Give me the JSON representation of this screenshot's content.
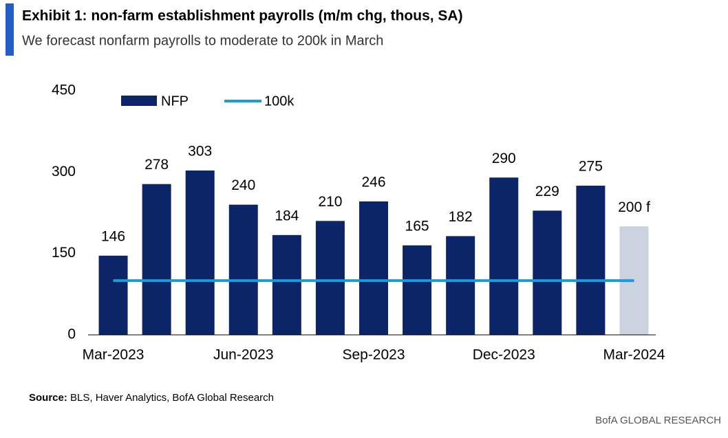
{
  "chart_data": {
    "type": "bar",
    "title": "Exhibit 1: non-farm establishment payrolls (m/m chg, thous, SA)",
    "subtitle": "We forecast nonfarm payrolls to moderate to 200k in March",
    "source_label": "Source:",
    "source": "BLS, Haver Analytics, BofA Global Research",
    "footer": "BofA GLOBAL RESEARCH",
    "categories": [
      "Mar-2023",
      null,
      null,
      "Jun-2023",
      null,
      null,
      "Sep-2023",
      null,
      null,
      "Dec-2023",
      null,
      null,
      "Mar-2024"
    ],
    "series": [
      {
        "name": "NFP",
        "type": "bar",
        "color": "#0c2468",
        "colors": [
          "#0c2468",
          "#0c2468",
          "#0c2468",
          "#0c2468",
          "#0c2468",
          "#0c2468",
          "#0c2468",
          "#0c2468",
          "#0c2468",
          "#0c2468",
          "#0c2468",
          "#0c2468",
          "#cbd3e1"
        ],
        "values": [
          146,
          278,
          303,
          240,
          184,
          210,
          246,
          165,
          182,
          290,
          229,
          275,
          200
        ],
        "value_labels": [
          "146",
          "278",
          "303",
          "240",
          "184",
          "210",
          "246",
          "165",
          "182",
          "290",
          "229",
          "275",
          "200 f"
        ]
      },
      {
        "name": "100k",
        "type": "line",
        "color": "#1a9ad6",
        "values": [
          100,
          100,
          100,
          100,
          100,
          100,
          100,
          100,
          100,
          100,
          100,
          100,
          100
        ]
      }
    ],
    "ylim": [
      0,
      450
    ],
    "yticks": [
      0,
      150,
      300,
      450
    ],
    "grid": false
  }
}
